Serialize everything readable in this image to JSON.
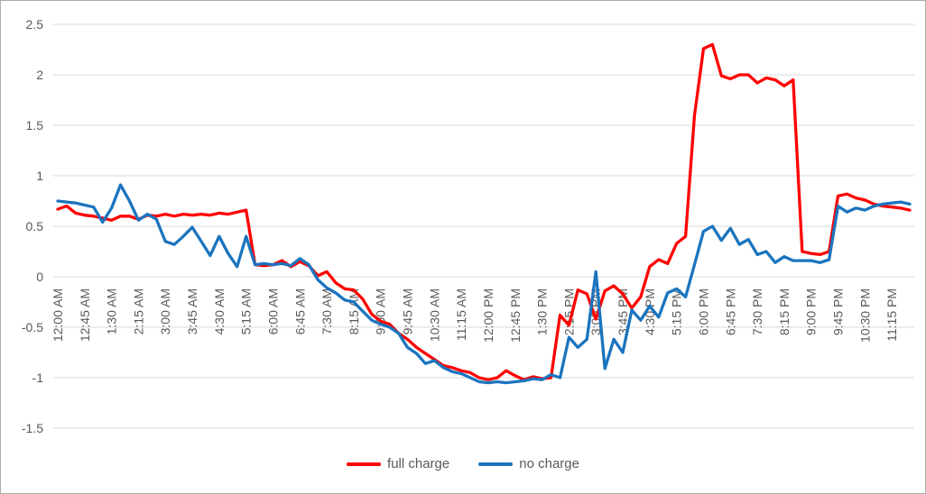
{
  "style": {
    "background": "#FFFFFF",
    "frame_border_color": "#ABABAB",
    "grid_color": "#D9D9D9",
    "tick_label_color": "#595959",
    "legend_text_color": "#595959"
  },
  "chart_data": {
    "type": "line",
    "title": "",
    "xlabel": "",
    "ylabel": "",
    "ylim": [
      -1.5,
      2.5
    ],
    "grid": true,
    "legend_position": "bottom",
    "x_interval_minutes": 15,
    "x_tick_every": 3,
    "y_ticks": [
      2.5,
      2,
      1.5,
      1,
      0.5,
      0,
      -0.5,
      -1,
      -1.5
    ],
    "y_tick_labels": [
      "2.5",
      "2",
      "1.5",
      "1",
      "0.5",
      "0",
      "-0.5",
      "-1",
      "-1.5"
    ],
    "x": [
      "12:00 AM",
      "12:15 AM",
      "12:30 AM",
      "12:45 AM",
      "1:00 AM",
      "1:15 AM",
      "1:30 AM",
      "1:45 AM",
      "2:00 AM",
      "2:15 AM",
      "2:30 AM",
      "2:45 AM",
      "3:00 AM",
      "3:15 AM",
      "3:30 AM",
      "3:45 AM",
      "4:00 AM",
      "4:15 AM",
      "4:30 AM",
      "4:45 AM",
      "5:00 AM",
      "5:15 AM",
      "5:30 AM",
      "5:45 AM",
      "6:00 AM",
      "6:15 AM",
      "6:30 AM",
      "6:45 AM",
      "7:00 AM",
      "7:15 AM",
      "7:30 AM",
      "7:45 AM",
      "8:00 AM",
      "8:15 AM",
      "8:30 AM",
      "8:45 AM",
      "9:00 AM",
      "9:15 AM",
      "9:30 AM",
      "9:45 AM",
      "10:00 AM",
      "10:15 AM",
      "10:30 AM",
      "10:45 AM",
      "11:00 AM",
      "11:15 AM",
      "11:30 AM",
      "11:45 AM",
      "12:00 PM",
      "12:15 PM",
      "12:30 PM",
      "12:45 PM",
      "1:00 PM",
      "1:15 PM",
      "1:30 PM",
      "1:45 PM",
      "2:00 PM",
      "2:15 PM",
      "2:30 PM",
      "2:45 PM",
      "3:00 PM",
      "3:15 PM",
      "3:30 PM",
      "3:45 PM",
      "4:00 PM",
      "4:15 PM",
      "4:30 PM",
      "4:45 PM",
      "5:00 PM",
      "5:15 PM",
      "5:30 PM",
      "5:45 PM",
      "6:00 PM",
      "6:15 PM",
      "6:30 PM",
      "6:45 PM",
      "7:00 PM",
      "7:15 PM",
      "7:30 PM",
      "7:45 PM",
      "8:00 PM",
      "8:15 PM",
      "8:30 PM",
      "8:45 PM",
      "9:00 PM",
      "9:15 PM",
      "9:30 PM",
      "9:45 PM",
      "10:00 PM",
      "10:15 PM",
      "10:30 PM",
      "10:45 PM",
      "11:00 PM",
      "11:15 PM",
      "11:30 PM",
      "11:45 PM"
    ],
    "x_tick_labels": [
      "12:00 AM",
      "12:45 AM",
      "1:30 AM",
      "2:15 AM",
      "3:00 AM",
      "3:45 AM",
      "4:30 AM",
      "5:15 AM",
      "6:00 AM",
      "6:45 AM",
      "7:30 AM",
      "8:15 AM",
      "9:00 AM",
      "9:45 AM",
      "10:30 AM",
      "11:15 AM",
      "12:00 PM",
      "12:45 PM",
      "1:30 PM",
      "2:15 PM",
      "3:00 PM",
      "3:45 PM",
      "4:30 PM",
      "5:15 PM",
      "6:00 PM",
      "6:45 PM",
      "7:30 PM",
      "8:15 PM",
      "9:00 PM",
      "9:45 PM",
      "10:30 PM",
      "11:15 PM"
    ],
    "series": [
      {
        "name": "full charge",
        "color": "#FF0000",
        "values": [
          0.67,
          0.7,
          0.63,
          0.61,
          0.6,
          0.58,
          0.56,
          0.6,
          0.6,
          0.57,
          0.61,
          0.6,
          0.62,
          0.6,
          0.62,
          0.61,
          0.62,
          0.61,
          0.63,
          0.62,
          0.64,
          0.66,
          0.12,
          0.11,
          0.12,
          0.16,
          0.1,
          0.15,
          0.11,
          0.01,
          0.05,
          -0.06,
          -0.12,
          -0.13,
          -0.22,
          -0.37,
          -0.44,
          -0.47,
          -0.56,
          -0.62,
          -0.7,
          -0.76,
          -0.82,
          -0.88,
          -0.9,
          -0.93,
          -0.95,
          -1.0,
          -1.02,
          -1.0,
          -0.93,
          -0.98,
          -1.02,
          -0.99,
          -1.01,
          -1.0,
          -0.38,
          -0.48,
          -0.13,
          -0.17,
          -0.42,
          -0.14,
          -0.09,
          -0.17,
          -0.31,
          -0.2,
          0.1,
          0.17,
          0.13,
          0.33,
          0.4,
          1.6,
          2.26,
          2.3,
          1.99,
          1.96,
          2.0,
          2.0,
          1.92,
          1.97,
          1.95,
          1.89,
          1.95,
          0.25,
          0.23,
          0.22,
          0.25,
          0.8,
          0.82,
          0.78,
          0.76,
          0.72,
          0.7,
          0.69,
          0.68,
          0.66
        ]
      },
      {
        "name": "no charge",
        "color": "#1B74BE",
        "values": [
          0.75,
          0.74,
          0.73,
          0.71,
          0.69,
          0.54,
          0.68,
          0.91,
          0.75,
          0.56,
          0.62,
          0.57,
          0.35,
          0.32,
          0.4,
          0.49,
          0.35,
          0.21,
          0.4,
          0.23,
          0.1,
          0.4,
          0.12,
          0.13,
          0.12,
          0.13,
          0.11,
          0.18,
          0.12,
          -0.03,
          -0.11,
          -0.16,
          -0.23,
          -0.25,
          -0.34,
          -0.43,
          -0.47,
          -0.5,
          -0.56,
          -0.7,
          -0.76,
          -0.86,
          -0.83,
          -0.9,
          -0.94,
          -0.96,
          -1.0,
          -1.04,
          -1.05,
          -1.04,
          -1.05,
          -1.04,
          -1.03,
          -1.01,
          -1.02,
          -0.97,
          -1.0,
          -0.6,
          -0.7,
          -0.62,
          0.05,
          -0.91,
          -0.62,
          -0.75,
          -0.33,
          -0.43,
          -0.29,
          -0.4,
          -0.16,
          -0.12,
          -0.2,
          0.12,
          0.45,
          0.5,
          0.36,
          0.48,
          0.32,
          0.37,
          0.22,
          0.25,
          0.14,
          0.2,
          0.16,
          0.16,
          0.16,
          0.14,
          0.17,
          0.7,
          0.64,
          0.68,
          0.66,
          0.7,
          0.72,
          0.73,
          0.74,
          0.72
        ]
      }
    ]
  }
}
